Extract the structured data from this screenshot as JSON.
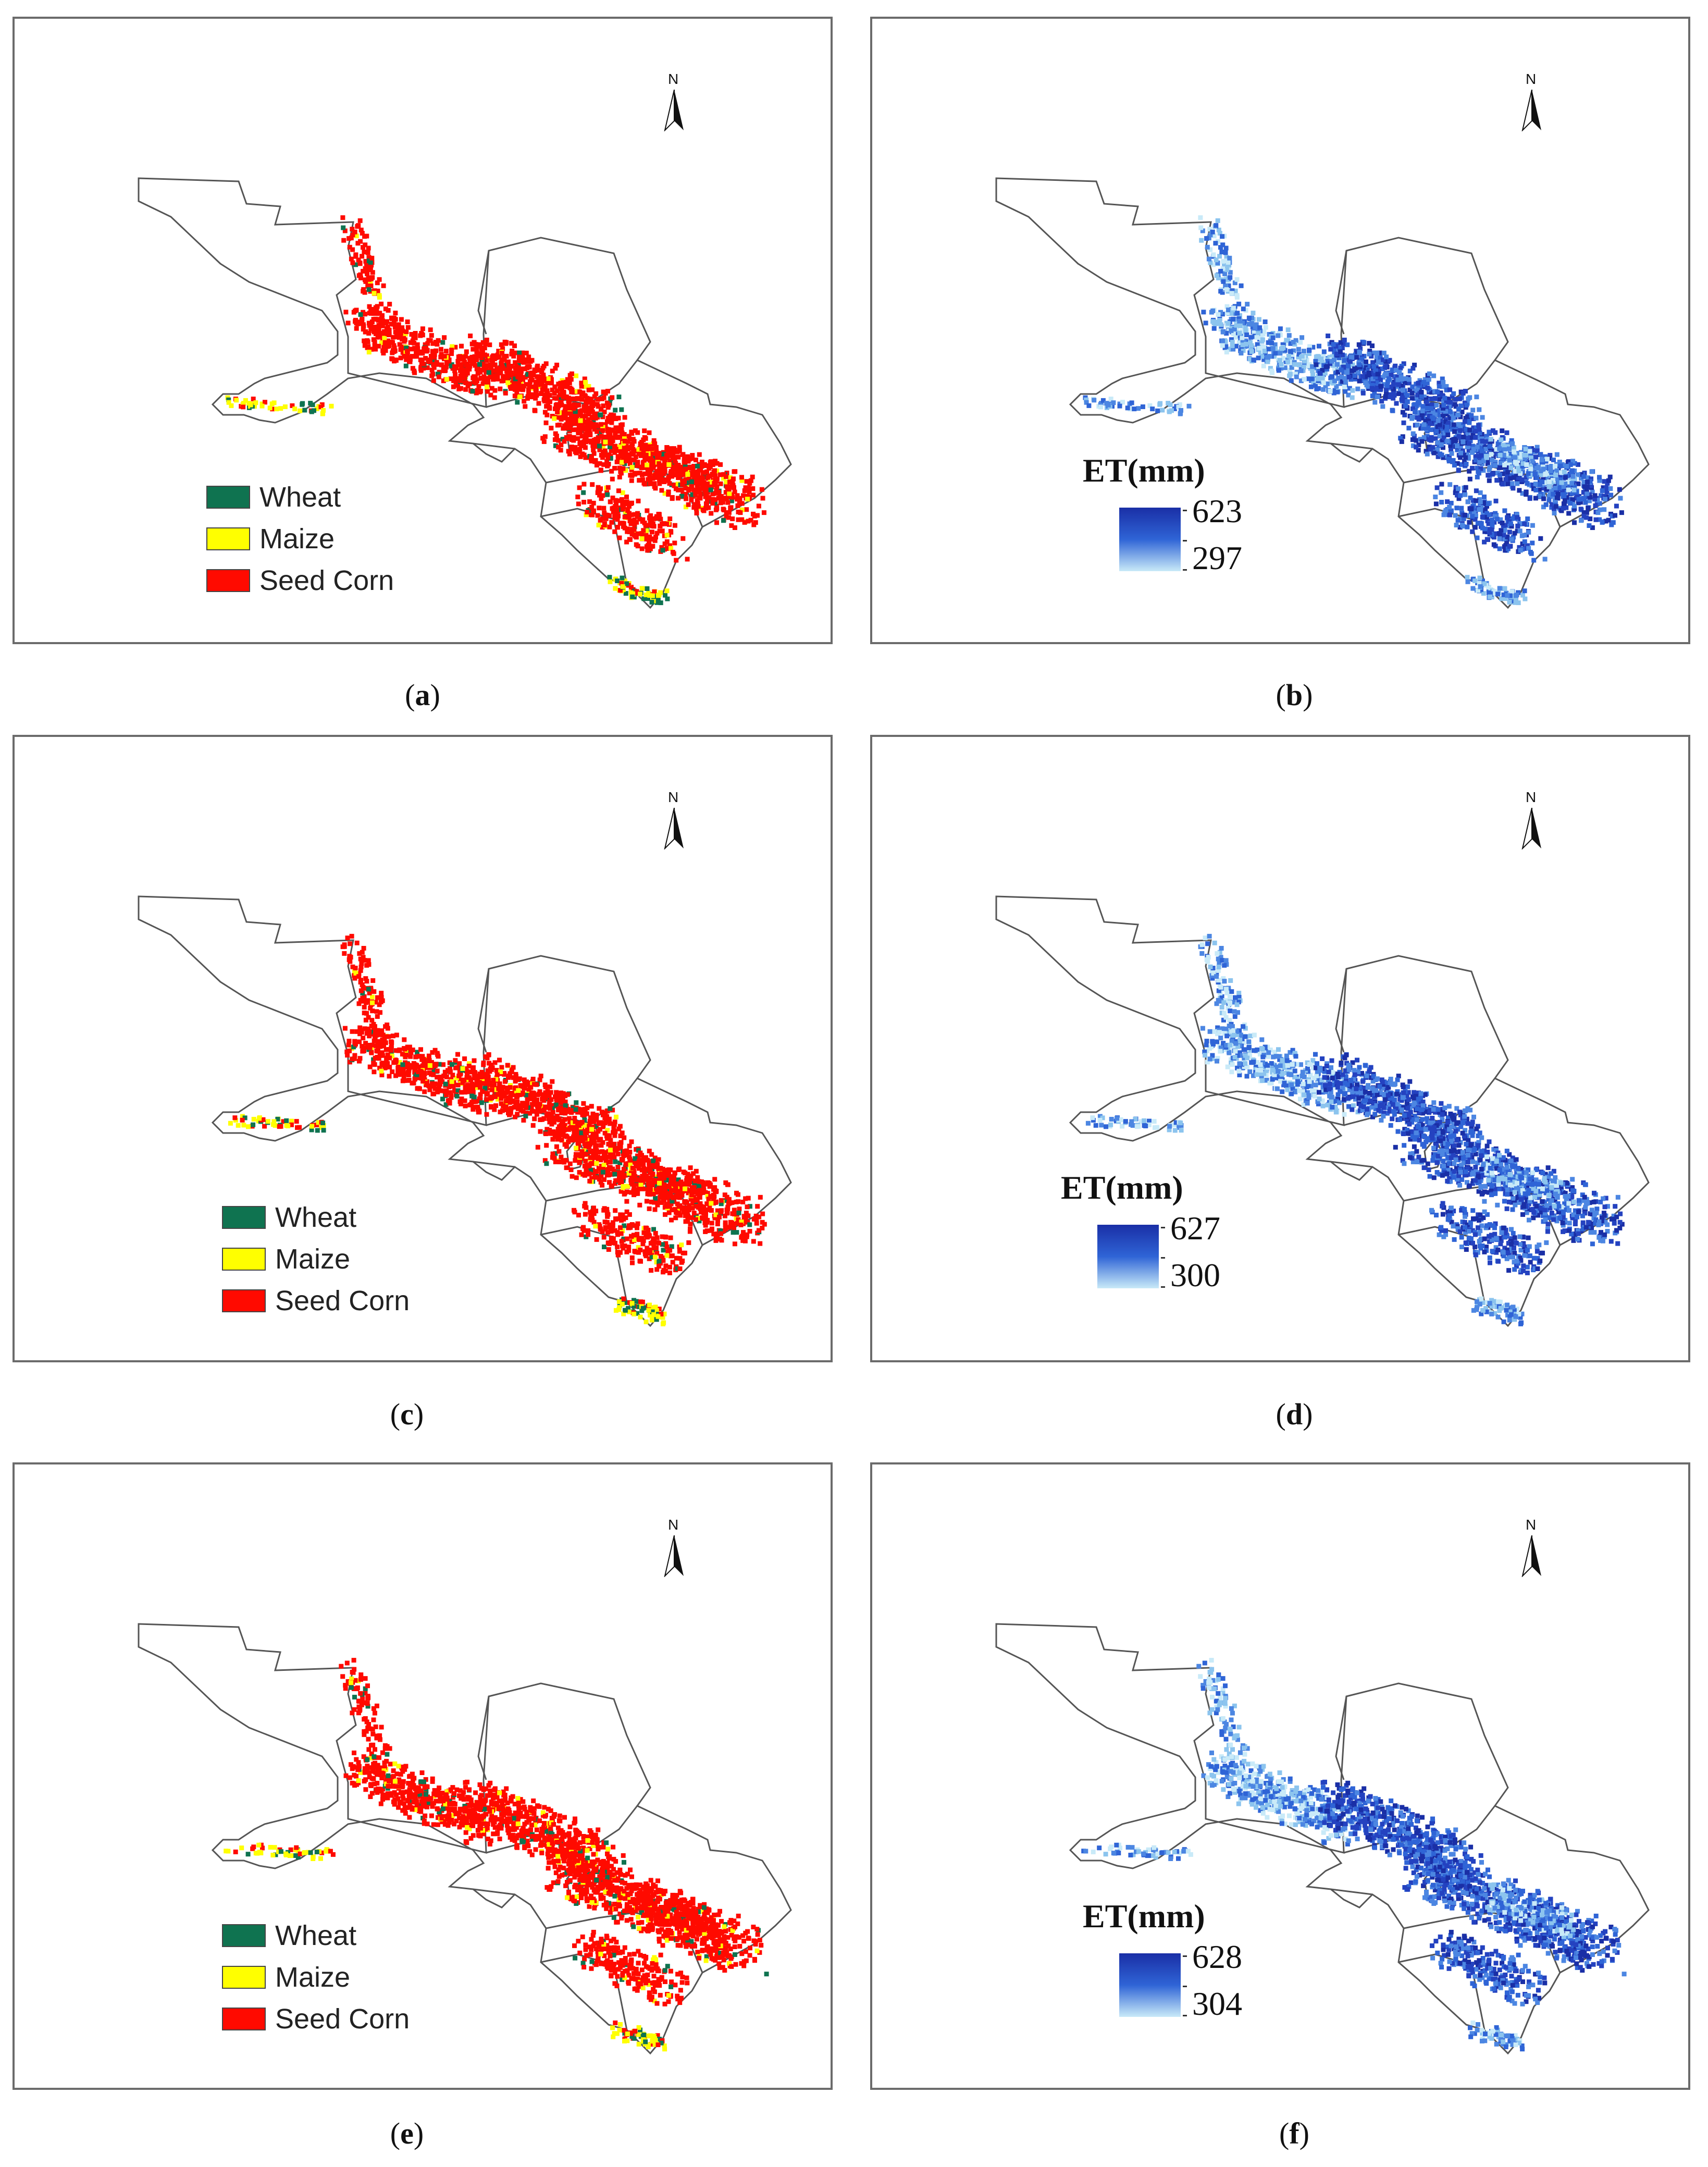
{
  "north_label": "N",
  "colors": {
    "wheat": "#0f7350",
    "maize": "#ffff00",
    "seed_corn": "#ff0a00",
    "et_high": "#1a2fa6",
    "et_low": "#c9eaf8",
    "boundary": "#555555"
  },
  "panels": [
    {
      "id": "a",
      "type": "crop",
      "caption_open": "(",
      "caption_letter": "a",
      "caption_close": ")",
      "legend": [
        {
          "label": "Wheat",
          "color": "#0f7350"
        },
        {
          "label": "Maize",
          "color": "#ffff00"
        },
        {
          "label": "Seed Corn",
          "color": "#ff0a00"
        }
      ]
    },
    {
      "id": "b",
      "type": "et",
      "caption_open": "(",
      "caption_letter": "b",
      "caption_close": ")",
      "et_title": "ET(mm)",
      "et_max": "623",
      "et_min": "297"
    },
    {
      "id": "c",
      "type": "crop",
      "caption_open": "(",
      "caption_letter": "c",
      "caption_close": ")",
      "legend": [
        {
          "label": "Wheat",
          "color": "#0f7350"
        },
        {
          "label": "Maize",
          "color": "#ffff00"
        },
        {
          "label": "Seed Corn",
          "color": "#ff0a00"
        }
      ]
    },
    {
      "id": "d",
      "type": "et",
      "caption_open": "(",
      "caption_letter": "d",
      "caption_close": ")",
      "et_title": "ET(mm)",
      "et_max": "627",
      "et_min": "300"
    },
    {
      "id": "e",
      "type": "crop",
      "caption_open": "(",
      "caption_letter": "e",
      "caption_close": ")",
      "legend": [
        {
          "label": "Wheat",
          "color": "#0f7350"
        },
        {
          "label": "Maize",
          "color": "#ffff00"
        },
        {
          "label": "Seed Corn",
          "color": "#ff0a00"
        }
      ]
    },
    {
      "id": "f",
      "type": "et",
      "caption_open": "(",
      "caption_letter": "f",
      "caption_close": ")",
      "et_title": "ET(mm)",
      "et_max": "628",
      "et_min": "304"
    }
  ]
}
